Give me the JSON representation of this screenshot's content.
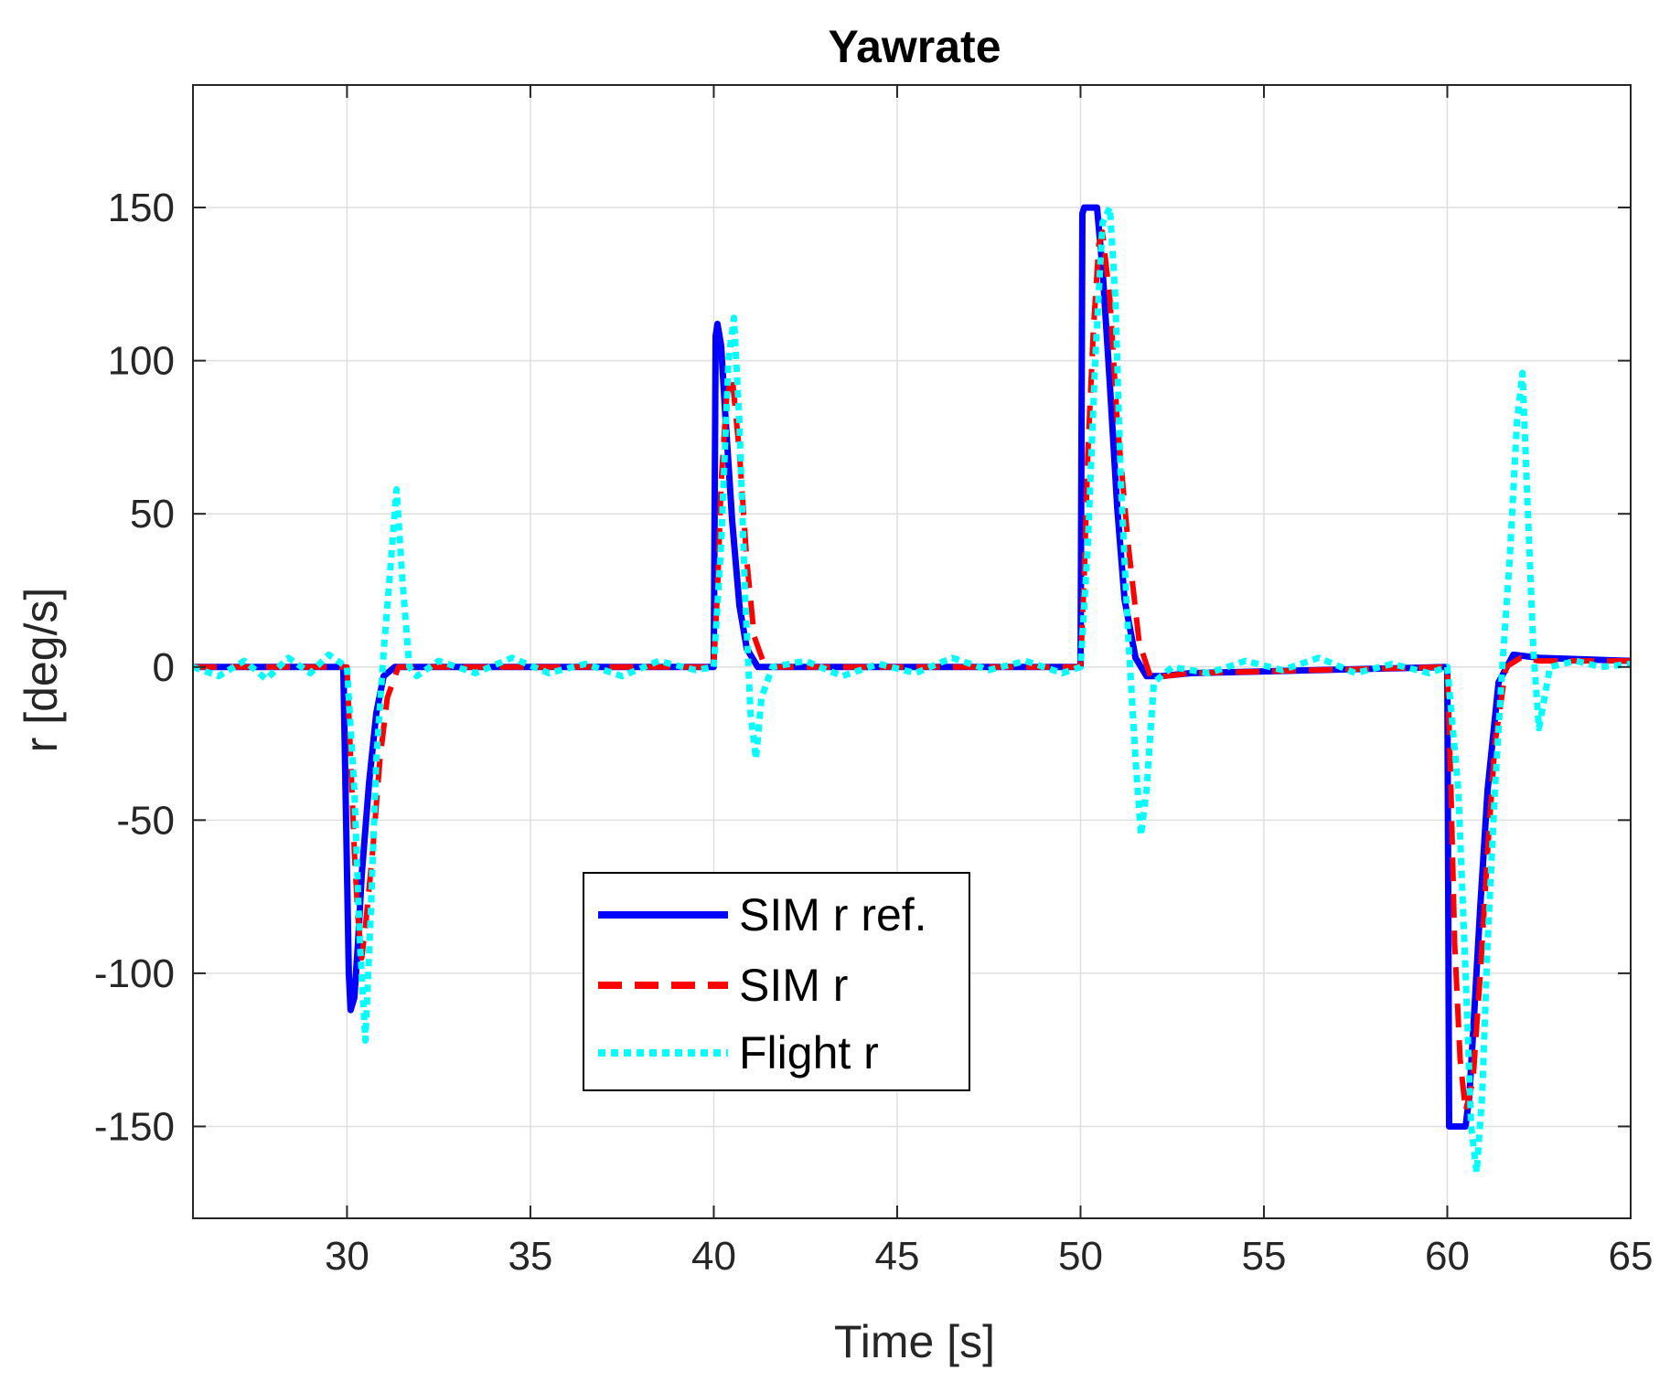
{
  "chart_data": {
    "type": "line",
    "title": "Yawrate",
    "xlabel": "Time [s]",
    "ylabel": "r [deg/s]",
    "xlim": [
      25.8,
      65
    ],
    "ylim": [
      -180,
      190
    ],
    "xticks": [
      30,
      35,
      40,
      45,
      50,
      55,
      60,
      65
    ],
    "yticks": [
      -150,
      -100,
      -50,
      0,
      50,
      100,
      150
    ],
    "grid": true,
    "legend_position": "bottom-center",
    "series": [
      {
        "name": "SIM r ref.",
        "color": "#0000ff",
        "style": "solid",
        "x": [
          25.8,
          29.9,
          30.05,
          30.1,
          30.2,
          30.3,
          30.4,
          30.6,
          30.8,
          31.0,
          31.3,
          40.0,
          40.05,
          40.1,
          40.2,
          40.3,
          40.5,
          40.7,
          40.9,
          41.2,
          50.0,
          50.05,
          50.1,
          50.3,
          50.45,
          50.6,
          50.8,
          51.0,
          51.2,
          51.5,
          51.8,
          52.2,
          53.0,
          60.0,
          60.05,
          60.1,
          60.5,
          60.6,
          60.7,
          60.9,
          61.1,
          61.4,
          61.8,
          62.5,
          65.0
        ],
        "y": [
          0,
          0,
          -100,
          -112,
          -108,
          -90,
          -68,
          -38,
          -15,
          -3,
          0,
          0,
          108,
          112,
          105,
          85,
          48,
          20,
          6,
          0,
          0,
          148,
          150,
          150,
          150,
          130,
          92,
          52,
          22,
          3,
          -3,
          -3,
          -2,
          0,
          -150,
          -150,
          -150,
          -140,
          -120,
          -78,
          -40,
          -5,
          4,
          3,
          2
        ]
      },
      {
        "name": "SIM r",
        "color": "#ff0000",
        "style": "dashed",
        "x": [
          25.8,
          30.0,
          30.1,
          30.2,
          30.3,
          30.4,
          30.5,
          30.7,
          30.9,
          31.1,
          31.4,
          40.0,
          40.1,
          40.2,
          40.35,
          40.5,
          40.7,
          40.9,
          41.1,
          41.4,
          50.0,
          50.1,
          50.2,
          50.35,
          50.5,
          50.6,
          50.8,
          51.0,
          51.3,
          51.6,
          51.9,
          52.3,
          53.0,
          60.0,
          60.1,
          60.2,
          60.35,
          60.5,
          60.7,
          60.9,
          61.1,
          61.3,
          61.6,
          62.0,
          62.5,
          65.0
        ],
        "y": [
          0,
          0,
          -30,
          -60,
          -82,
          -95,
          -85,
          -60,
          -30,
          -10,
          0,
          0,
          25,
          60,
          88,
          95,
          70,
          35,
          10,
          0,
          0,
          30,
          70,
          110,
          138,
          142,
          120,
          80,
          40,
          8,
          -3,
          -3,
          -2,
          0,
          -40,
          -90,
          -128,
          -145,
          -135,
          -100,
          -60,
          -25,
          0,
          3,
          2,
          2
        ]
      },
      {
        "name": "Flight r",
        "color": "#00ffff",
        "style": "dotted",
        "x": [
          25.8,
          26.5,
          27.2,
          27.8,
          28.4,
          29.0,
          29.5,
          30.0,
          30.2,
          30.35,
          30.5,
          30.65,
          30.8,
          31.0,
          31.2,
          31.35,
          31.5,
          31.7,
          31.9,
          32.5,
          33.5,
          34.5,
          35.5,
          36.5,
          37.5,
          38.5,
          39.5,
          40.0,
          40.2,
          40.4,
          40.55,
          40.7,
          40.85,
          41.0,
          41.15,
          41.3,
          41.6,
          42.5,
          43.5,
          44.5,
          45.5,
          46.5,
          47.5,
          48.5,
          49.5,
          50.0,
          50.2,
          50.4,
          50.6,
          50.8,
          50.95,
          51.1,
          51.3,
          51.5,
          51.65,
          51.8,
          52.0,
          52.5,
          53.5,
          54.5,
          55.5,
          56.5,
          57.5,
          58.5,
          59.5,
          60.0,
          60.3,
          60.5,
          60.65,
          60.8,
          60.95,
          61.1,
          61.3,
          61.5,
          61.7,
          61.9,
          62.05,
          62.2,
          62.35,
          62.5,
          62.8,
          63.5,
          64.2,
          65.0
        ],
        "y": [
          0,
          -3,
          2,
          -4,
          3,
          -2,
          4,
          0,
          -40,
          -90,
          -122,
          -80,
          -30,
          5,
          35,
          58,
          30,
          0,
          -3,
          2,
          -2,
          3,
          -2,
          1,
          -3,
          2,
          -1,
          0,
          40,
          100,
          114,
          80,
          25,
          -15,
          -30,
          -10,
          0,
          2,
          -3,
          1,
          -2,
          3,
          -1,
          2,
          -2,
          0,
          40,
          100,
          145,
          150,
          120,
          60,
          10,
          -30,
          -55,
          -40,
          -5,
          0,
          -2,
          2,
          -1,
          3,
          -2,
          1,
          -2,
          0,
          -40,
          -100,
          -150,
          -165,
          -140,
          -90,
          -40,
          0,
          35,
          80,
          96,
          50,
          5,
          -20,
          0,
          2,
          0,
          1
        ]
      }
    ]
  }
}
